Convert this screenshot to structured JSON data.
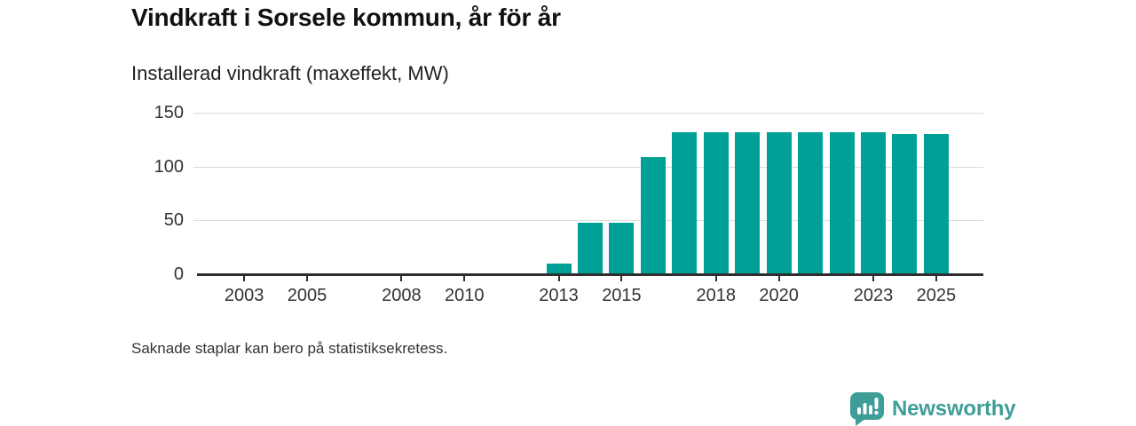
{
  "header": {
    "title": "Vindkraft i Sorsele kommun, år för år",
    "subtitle": "Installerad vindkraft (maxeffekt, MW)"
  },
  "chart_data": {
    "type": "bar",
    "title": "Vindkraft i Sorsele kommun, år för år",
    "subtitle": "Installerad vindkraft (maxeffekt, MW)",
    "x": [
      2013,
      2014,
      2015,
      2016,
      2017,
      2018,
      2019,
      2020,
      2021,
      2022,
      2023,
      2024,
      2025
    ],
    "values": [
      10,
      48,
      48,
      109,
      132,
      132,
      132,
      132,
      132,
      132,
      132,
      130,
      130
    ],
    "unit": "MW",
    "xlim": [
      2002,
      2026
    ],
    "ylim": [
      0,
      150
    ],
    "yticks": [
      0,
      50,
      100,
      150
    ],
    "xticks": [
      2003,
      2005,
      2008,
      2010,
      2013,
      2015,
      2018,
      2020,
      2023,
      2025
    ],
    "grid": "horizontal-light-gray",
    "legend": "none",
    "bar_color": "#00a096",
    "axis_color": "#2e2e2e",
    "grid_color": "#dcdcdc",
    "label_color": "#333333"
  },
  "footnote": {
    "text": "Saknade staplar kan bero på statistiksekretess."
  },
  "branding": {
    "logo_text": "Newsworthy",
    "logo_icon": "speech-bubble-bar-chart-exclamation-icon",
    "logo_color": "#3f9d98"
  }
}
